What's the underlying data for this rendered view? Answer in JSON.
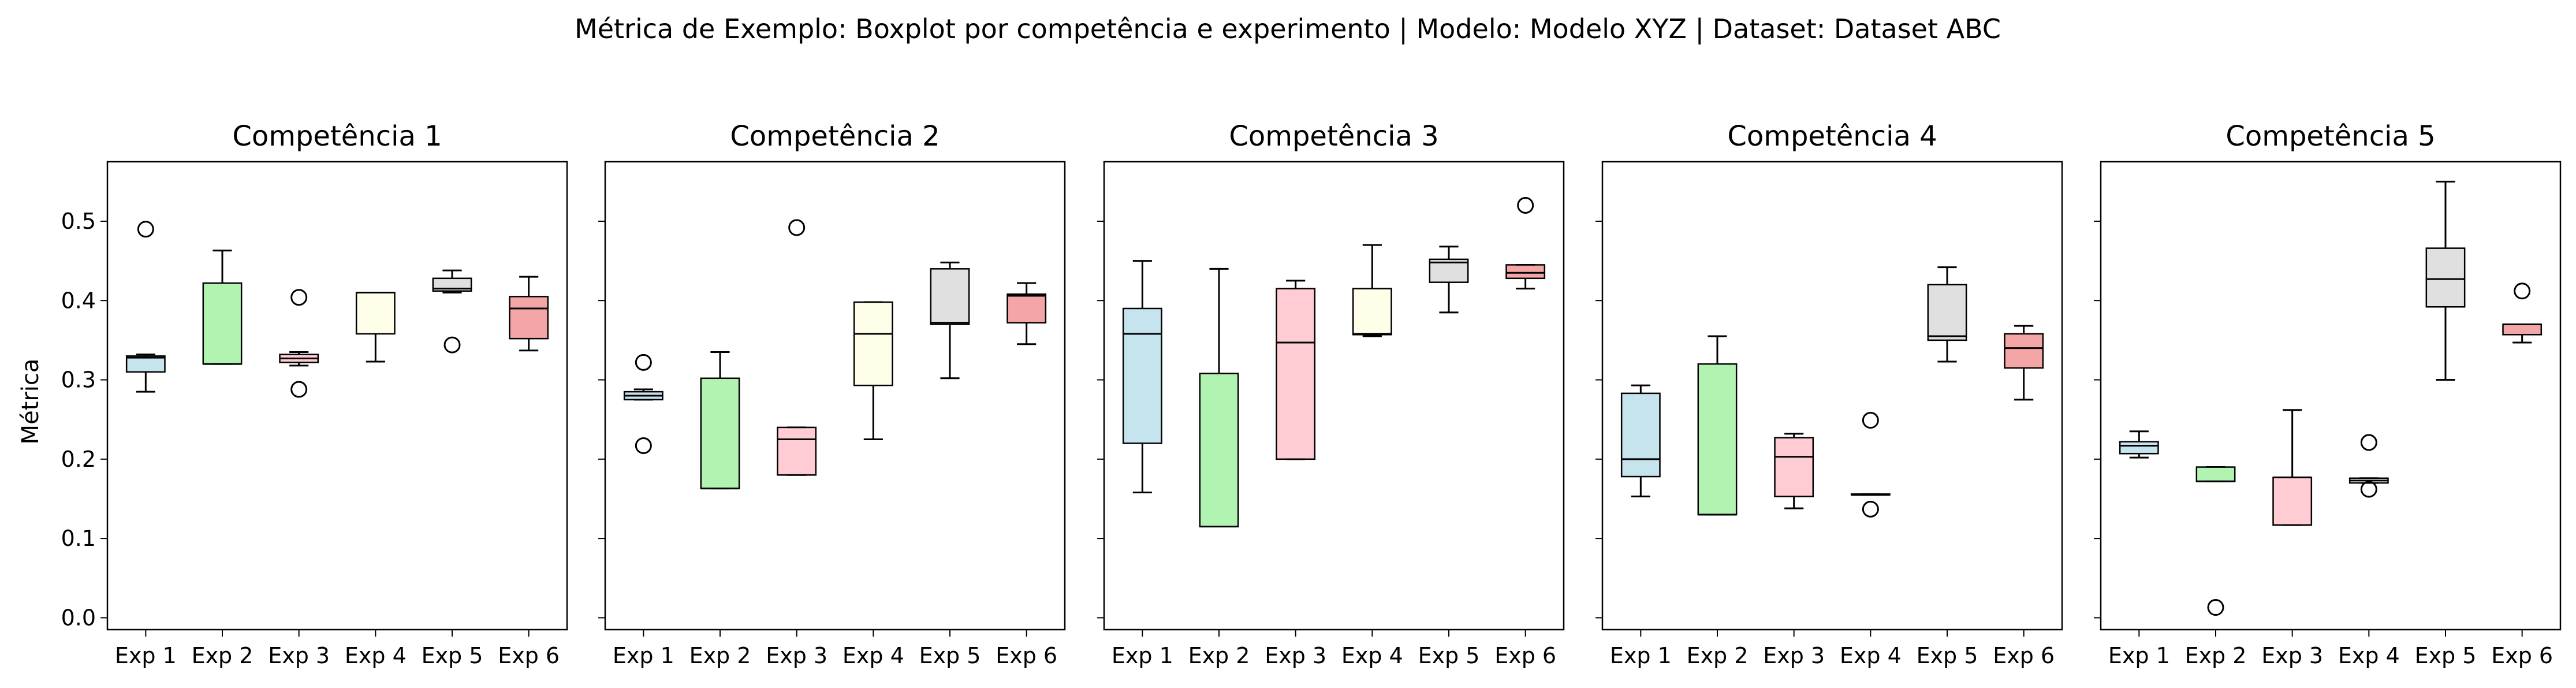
{
  "figure": {
    "title": "Métrica de Exemplo: Boxplot por competência e experimento | Modelo: Modelo XYZ | Dataset: Dataset ABC",
    "ylabel": "Métrica"
  },
  "chart_data": {
    "type": "boxplot",
    "categories": [
      "Exp 1",
      "Exp 2",
      "Exp 3",
      "Exp 4",
      "Exp 5",
      "Exp 6"
    ],
    "ylim": [
      -0.015,
      0.575
    ],
    "yticks": [
      "0.0",
      "0.1",
      "0.2",
      "0.3",
      "0.4",
      "0.5"
    ],
    "ytick_values": [
      0.0,
      0.1,
      0.2,
      0.3,
      0.4,
      0.5
    ],
    "sharey": true,
    "grid": false,
    "box_colors": [
      "#add8e6",
      "#90ee90",
      "#ffb6c1",
      "#ffffe0",
      "#d3d3d3",
      "#f08080"
    ],
    "box_alpha": 0.7,
    "panels": [
      {
        "title": "Competência 1",
        "boxes": [
          {
            "whislo": 0.285,
            "q1": 0.31,
            "med": 0.328,
            "q3": 0.33,
            "whishi": 0.332,
            "fliers": [
              0.49
            ]
          },
          {
            "whislo": 0.32,
            "q1": 0.32,
            "med": 0.32,
            "q3": 0.422,
            "whishi": 0.463,
            "fliers": []
          },
          {
            "whislo": 0.318,
            "q1": 0.322,
            "med": 0.327,
            "q3": 0.332,
            "whishi": 0.335,
            "fliers": [
              0.404,
              0.288
            ]
          },
          {
            "whislo": 0.323,
            "q1": 0.358,
            "med": 0.41,
            "q3": 0.41,
            "whishi": 0.41,
            "fliers": []
          },
          {
            "whislo": 0.41,
            "q1": 0.412,
            "med": 0.415,
            "q3": 0.428,
            "whishi": 0.438,
            "fliers": [
              0.344
            ]
          },
          {
            "whislo": 0.337,
            "q1": 0.352,
            "med": 0.39,
            "q3": 0.405,
            "whishi": 0.43,
            "fliers": []
          }
        ]
      },
      {
        "title": "Competência 2",
        "boxes": [
          {
            "whislo": 0.275,
            "q1": 0.275,
            "med": 0.28,
            "q3": 0.285,
            "whishi": 0.288,
            "fliers": [
              0.322,
              0.217
            ]
          },
          {
            "whislo": 0.163,
            "q1": 0.163,
            "med": 0.163,
            "q3": 0.302,
            "whishi": 0.335,
            "fliers": []
          },
          {
            "whislo": 0.18,
            "q1": 0.18,
            "med": 0.225,
            "q3": 0.24,
            "whishi": 0.24,
            "fliers": [
              0.492
            ]
          },
          {
            "whislo": 0.225,
            "q1": 0.293,
            "med": 0.358,
            "q3": 0.398,
            "whishi": 0.398,
            "fliers": []
          },
          {
            "whislo": 0.302,
            "q1": 0.37,
            "med": 0.372,
            "q3": 0.44,
            "whishi": 0.448,
            "fliers": []
          },
          {
            "whislo": 0.345,
            "q1": 0.372,
            "med": 0.406,
            "q3": 0.408,
            "whishi": 0.422,
            "fliers": []
          }
        ]
      },
      {
        "title": "Competência 3",
        "boxes": [
          {
            "whislo": 0.158,
            "q1": 0.22,
            "med": 0.358,
            "q3": 0.39,
            "whishi": 0.45,
            "fliers": []
          },
          {
            "whislo": 0.115,
            "q1": 0.115,
            "med": 0.115,
            "q3": 0.308,
            "whishi": 0.44,
            "fliers": []
          },
          {
            "whislo": 0.2,
            "q1": 0.2,
            "med": 0.347,
            "q3": 0.415,
            "whishi": 0.425,
            "fliers": []
          },
          {
            "whislo": 0.355,
            "q1": 0.357,
            "med": 0.358,
            "q3": 0.415,
            "whishi": 0.47,
            "fliers": []
          },
          {
            "whislo": 0.385,
            "q1": 0.423,
            "med": 0.448,
            "q3": 0.452,
            "whishi": 0.468,
            "fliers": []
          },
          {
            "whislo": 0.415,
            "q1": 0.428,
            "med": 0.435,
            "q3": 0.445,
            "whishi": 0.445,
            "fliers": [
              0.52
            ]
          }
        ]
      },
      {
        "title": "Competência 4",
        "boxes": [
          {
            "whislo": 0.153,
            "q1": 0.178,
            "med": 0.2,
            "q3": 0.283,
            "whishi": 0.293,
            "fliers": []
          },
          {
            "whislo": 0.13,
            "q1": 0.13,
            "med": 0.13,
            "q3": 0.32,
            "whishi": 0.355,
            "fliers": []
          },
          {
            "whislo": 0.138,
            "q1": 0.153,
            "med": 0.203,
            "q3": 0.227,
            "whishi": 0.232,
            "fliers": []
          },
          {
            "whislo": 0.155,
            "q1": 0.155,
            "med": 0.155,
            "q3": 0.156,
            "whishi": 0.156,
            "fliers": [
              0.249,
              0.137
            ]
          },
          {
            "whislo": 0.323,
            "q1": 0.35,
            "med": 0.355,
            "q3": 0.42,
            "whishi": 0.442,
            "fliers": []
          },
          {
            "whislo": 0.275,
            "q1": 0.315,
            "med": 0.34,
            "q3": 0.358,
            "whishi": 0.368,
            "fliers": []
          }
        ]
      },
      {
        "title": "Competência 5",
        "boxes": [
          {
            "whislo": 0.202,
            "q1": 0.207,
            "med": 0.217,
            "q3": 0.222,
            "whishi": 0.235,
            "fliers": []
          },
          {
            "whislo": 0.172,
            "q1": 0.172,
            "med": 0.172,
            "q3": 0.19,
            "whishi": 0.19,
            "fliers": [
              0.013
            ]
          },
          {
            "whislo": 0.117,
            "q1": 0.117,
            "med": 0.177,
            "q3": 0.177,
            "whishi": 0.262,
            "fliers": []
          },
          {
            "whislo": 0.17,
            "q1": 0.17,
            "med": 0.173,
            "q3": 0.176,
            "whishi": 0.176,
            "fliers": [
              0.221,
              0.162
            ]
          },
          {
            "whislo": 0.3,
            "q1": 0.392,
            "med": 0.427,
            "q3": 0.466,
            "whishi": 0.55,
            "fliers": []
          },
          {
            "whislo": 0.347,
            "q1": 0.357,
            "med": 0.37,
            "q3": 0.37,
            "whishi": 0.37,
            "fliers": [
              0.412
            ]
          }
        ]
      }
    ]
  }
}
